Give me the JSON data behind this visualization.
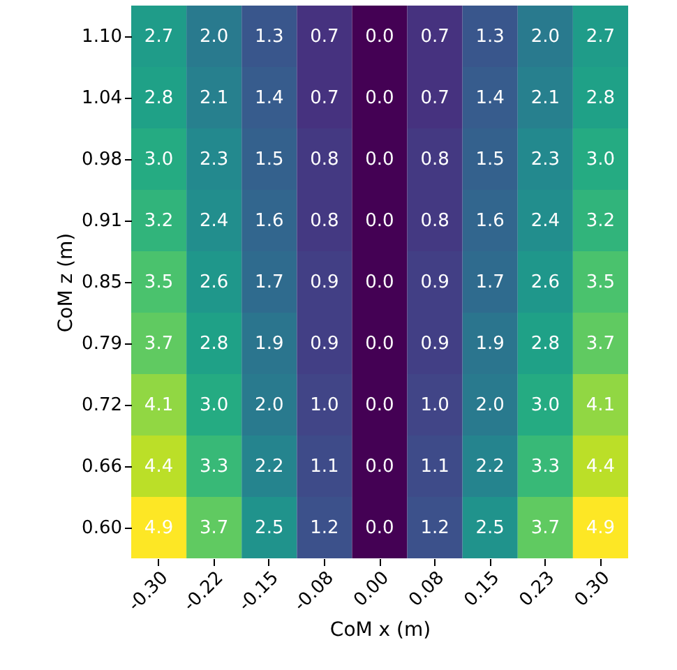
{
  "chart_data": {
    "type": "heatmap",
    "xlabel": "CoM x (m)",
    "ylabel": "CoM z (m)",
    "categories": [
      "-0.30",
      "-0.22",
      "-0.15",
      "-0.08",
      "0.00",
      "0.08",
      "0.15",
      "0.23",
      "0.30"
    ],
    "y_categories": [
      "1.10",
      "1.04",
      "0.98",
      "0.91",
      "0.85",
      "0.79",
      "0.72",
      "0.66",
      "0.60"
    ],
    "cells": [
      [
        2.7,
        2.0,
        1.3,
        0.7,
        0.0,
        0.7,
        1.3,
        2.0,
        2.7
      ],
      [
        2.8,
        2.1,
        1.4,
        0.7,
        0.0,
        0.7,
        1.4,
        2.1,
        2.8
      ],
      [
        3.0,
        2.3,
        1.5,
        0.8,
        0.0,
        0.8,
        1.5,
        2.3,
        3.0
      ],
      [
        3.2,
        2.4,
        1.6,
        0.8,
        0.0,
        0.8,
        1.6,
        2.4,
        3.2
      ],
      [
        3.5,
        2.6,
        1.7,
        0.9,
        0.0,
        0.9,
        1.7,
        2.6,
        3.5
      ],
      [
        3.7,
        2.8,
        1.9,
        0.9,
        0.0,
        0.9,
        1.9,
        2.8,
        3.7
      ],
      [
        4.1,
        3.0,
        2.0,
        1.0,
        0.0,
        1.0,
        2.0,
        3.0,
        4.1
      ],
      [
        4.4,
        3.3,
        2.2,
        1.1,
        0.0,
        1.1,
        2.2,
        3.3,
        4.4
      ],
      [
        4.9,
        3.7,
        2.5,
        1.2,
        0.0,
        1.2,
        2.5,
        3.7,
        4.9
      ]
    ],
    "cell_labels": [
      [
        "2.7",
        "2.0",
        "1.3",
        "0.7",
        "0.0",
        "0.7",
        "1.3",
        "2.0",
        "2.7"
      ],
      [
        "2.8",
        "2.1",
        "1.4",
        "0.7",
        "0.0",
        "0.7",
        "1.4",
        "2.1",
        "2.8"
      ],
      [
        "3.0",
        "2.3",
        "1.5",
        "0.8",
        "0.0",
        "0.8",
        "1.5",
        "2.3",
        "3.0"
      ],
      [
        "3.2",
        "2.4",
        "1.6",
        "0.8",
        "0.0",
        "0.8",
        "1.6",
        "2.4",
        "3.2"
      ],
      [
        "3.5",
        "2.6",
        "1.7",
        "0.9",
        "0.0",
        "0.9",
        "1.7",
        "2.6",
        "3.5"
      ],
      [
        "3.7",
        "2.8",
        "1.9",
        "0.9",
        "0.0",
        "0.9",
        "1.9",
        "2.8",
        "3.7"
      ],
      [
        "4.1",
        "3.0",
        "2.0",
        "1.0",
        "0.0",
        "1.0",
        "2.0",
        "3.0",
        "4.1"
      ],
      [
        "4.4",
        "3.3",
        "2.2",
        "1.1",
        "0.0",
        "1.1",
        "2.2",
        "3.3",
        "4.4"
      ],
      [
        "4.9",
        "3.7",
        "2.5",
        "1.2",
        "0.0",
        "1.2",
        "2.5",
        "3.7",
        "4.9"
      ]
    ]
  }
}
